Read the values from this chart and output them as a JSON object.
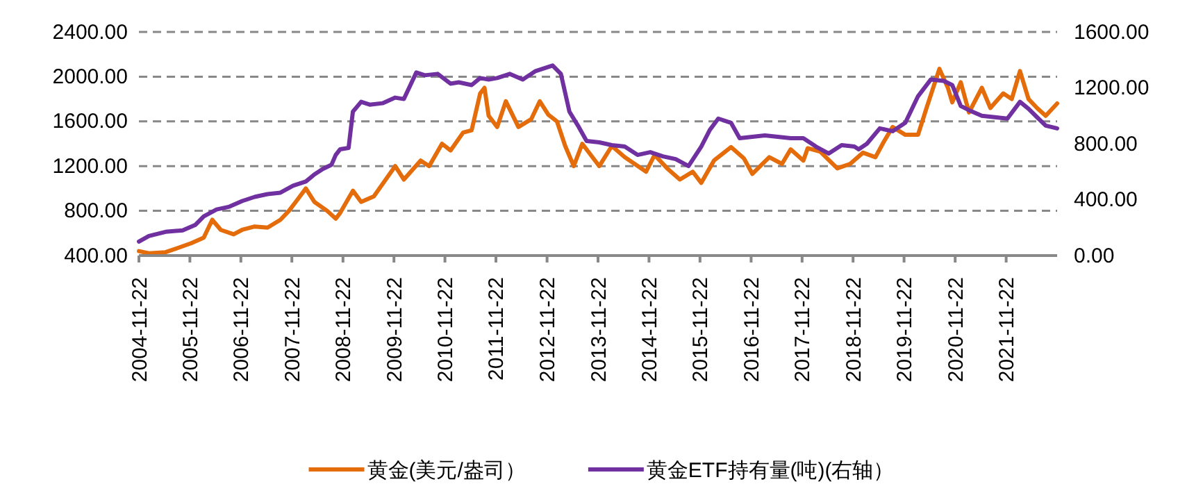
{
  "chart_data": {
    "type": "line",
    "legend": "bottom",
    "grid": "y",
    "line_style": "solid",
    "xlim": [
      "2004-11-22",
      "2022-11-22"
    ],
    "xticks": [
      "2004-11-22",
      "2005-11-22",
      "2006-11-22",
      "2007-11-22",
      "2008-11-22",
      "2009-11-22",
      "2010-11-22",
      "2011-11-22",
      "2012-11-22",
      "2013-11-22",
      "2014-11-22",
      "2015-11-22",
      "2016-11-22",
      "2017-11-22",
      "2018-11-22",
      "2019-11-22",
      "2020-11-22",
      "2021-11-22"
    ],
    "ylim": [
      400,
      2400
    ],
    "yticks": [
      {
        "value": 400,
        "label": "400.00"
      },
      {
        "value": 800,
        "label": "800.00"
      },
      {
        "value": 1200,
        "label": "1200.00"
      },
      {
        "value": 1600,
        "label": "1600.00"
      },
      {
        "value": 2000,
        "label": "2000.00"
      },
      {
        "value": 2400,
        "label": "2400.00"
      }
    ],
    "y2lim": [
      0,
      1600
    ],
    "y2ticks": [
      {
        "value": 0,
        "label": "0.00"
      },
      {
        "value": 400,
        "label": "400.00"
      },
      {
        "value": 800,
        "label": "800.00"
      },
      {
        "value": 1200,
        "label": "1200.00"
      },
      {
        "value": 1600,
        "label": "1600.00"
      }
    ],
    "series": [
      {
        "name": "黄金(美元/盎司）",
        "color": "#e46c0a",
        "x": [
          "2004-11-22",
          "2005-02",
          "2005-06",
          "2005-09",
          "2005-12",
          "2006-03",
          "2006-05",
          "2006-07",
          "2006-10",
          "2006-12",
          "2007-03",
          "2007-06",
          "2007-09",
          "2007-11",
          "2008-01",
          "2008-03",
          "2008-05",
          "2008-08",
          "2008-10",
          "2008-11",
          "2009-02",
          "2009-04",
          "2009-07",
          "2009-12",
          "2010-02",
          "2010-06",
          "2010-08",
          "2010-11",
          "2011-01",
          "2011-04",
          "2011-06",
          "2011-08",
          "2011-09",
          "2011-10",
          "2011-12",
          "2012-02",
          "2012-05",
          "2012-08",
          "2012-10",
          "2012-12",
          "2013-02",
          "2013-04",
          "2013-06",
          "2013-08",
          "2013-12",
          "2014-03",
          "2014-06",
          "2014-11",
          "2015-01",
          "2015-04",
          "2015-07",
          "2015-10",
          "2015-12",
          "2016-03",
          "2016-07",
          "2016-10",
          "2016-12",
          "2017-04",
          "2017-07",
          "2017-09",
          "2017-12",
          "2018-01",
          "2018-04",
          "2018-08",
          "2018-11",
          "2019-02",
          "2019-05",
          "2019-07",
          "2019-09",
          "2019-12",
          "2020-03",
          "2020-05",
          "2020-08",
          "2020-10",
          "2020-11",
          "2021-01",
          "2021-03",
          "2021-06",
          "2021-08",
          "2021-11",
          "2022-01",
          "2022-03",
          "2022-05",
          "2022-07",
          "2022-09",
          "2022-11-22"
        ],
        "values": [
          440,
          420,
          430,
          470,
          510,
          560,
          720,
          630,
          590,
          630,
          660,
          650,
          720,
          800,
          900,
          1000,
          880,
          800,
          730,
          780,
          980,
          880,
          930,
          1200,
          1080,
          1250,
          1200,
          1400,
          1340,
          1500,
          1520,
          1850,
          1900,
          1650,
          1550,
          1780,
          1550,
          1620,
          1780,
          1660,
          1600,
          1380,
          1200,
          1400,
          1200,
          1380,
          1280,
          1150,
          1300,
          1180,
          1080,
          1150,
          1050,
          1250,
          1370,
          1270,
          1130,
          1280,
          1220,
          1350,
          1250,
          1360,
          1330,
          1180,
          1220,
          1320,
          1280,
          1420,
          1550,
          1480,
          1480,
          1720,
          2070,
          1900,
          1770,
          1950,
          1680,
          1900,
          1720,
          1850,
          1800,
          2050,
          1800,
          1720,
          1650,
          1760
        ]
      },
      {
        "name": "黄金ETF持有量(吨)(右轴）",
        "color": "#7030a0",
        "axis": "y2",
        "x": [
          "2004-11-22",
          "2005-02",
          "2005-06",
          "2005-10",
          "2006-01",
          "2006-03",
          "2006-06",
          "2006-09",
          "2006-12",
          "2007-03",
          "2007-06",
          "2007-09",
          "2007-12",
          "2008-03",
          "2008-05",
          "2008-07",
          "2008-09",
          "2008-10",
          "2008-11",
          "2009-01",
          "2009-02",
          "2009-04",
          "2009-06",
          "2009-09",
          "2009-12",
          "2010-02",
          "2010-05",
          "2010-07",
          "2010-10",
          "2011-01",
          "2011-03",
          "2011-06",
          "2011-08",
          "2011-10",
          "2011-12",
          "2012-03",
          "2012-06",
          "2012-09",
          "2012-12",
          "2013-01",
          "2013-03",
          "2013-05",
          "2013-07",
          "2013-09",
          "2013-12",
          "2014-03",
          "2014-06",
          "2014-09",
          "2014-12",
          "2015-03",
          "2015-06",
          "2015-09",
          "2015-12",
          "2016-02",
          "2016-04",
          "2016-07",
          "2016-09",
          "2016-12",
          "2017-03",
          "2017-06",
          "2017-09",
          "2017-12",
          "2018-03",
          "2018-06",
          "2018-09",
          "2018-12",
          "2019-01",
          "2019-03",
          "2019-06",
          "2019-09",
          "2019-12",
          "2020-03",
          "2020-06",
          "2020-09",
          "2020-11",
          "2021-01",
          "2021-03",
          "2021-06",
          "2021-09",
          "2021-12",
          "2022-03",
          "2022-05",
          "2022-07",
          "2022-09",
          "2022-11-22"
        ],
        "values": [
          100,
          140,
          170,
          180,
          220,
          280,
          330,
          350,
          390,
          420,
          440,
          450,
          500,
          530,
          580,
          620,
          650,
          720,
          760,
          770,
          1030,
          1100,
          1080,
          1090,
          1130,
          1120,
          1310,
          1290,
          1300,
          1230,
          1240,
          1220,
          1270,
          1260,
          1270,
          1300,
          1260,
          1320,
          1350,
          1360,
          1300,
          1030,
          930,
          820,
          810,
          790,
          780,
          720,
          740,
          710,
          690,
          640,
          780,
          900,
          980,
          950,
          840,
          850,
          860,
          850,
          840,
          840,
          780,
          730,
          790,
          780,
          760,
          800,
          910,
          890,
          950,
          1140,
          1260,
          1250,
          1220,
          1070,
          1040,
          1000,
          990,
          980,
          1100,
          1050,
          990,
          930,
          910
        ]
      }
    ]
  }
}
